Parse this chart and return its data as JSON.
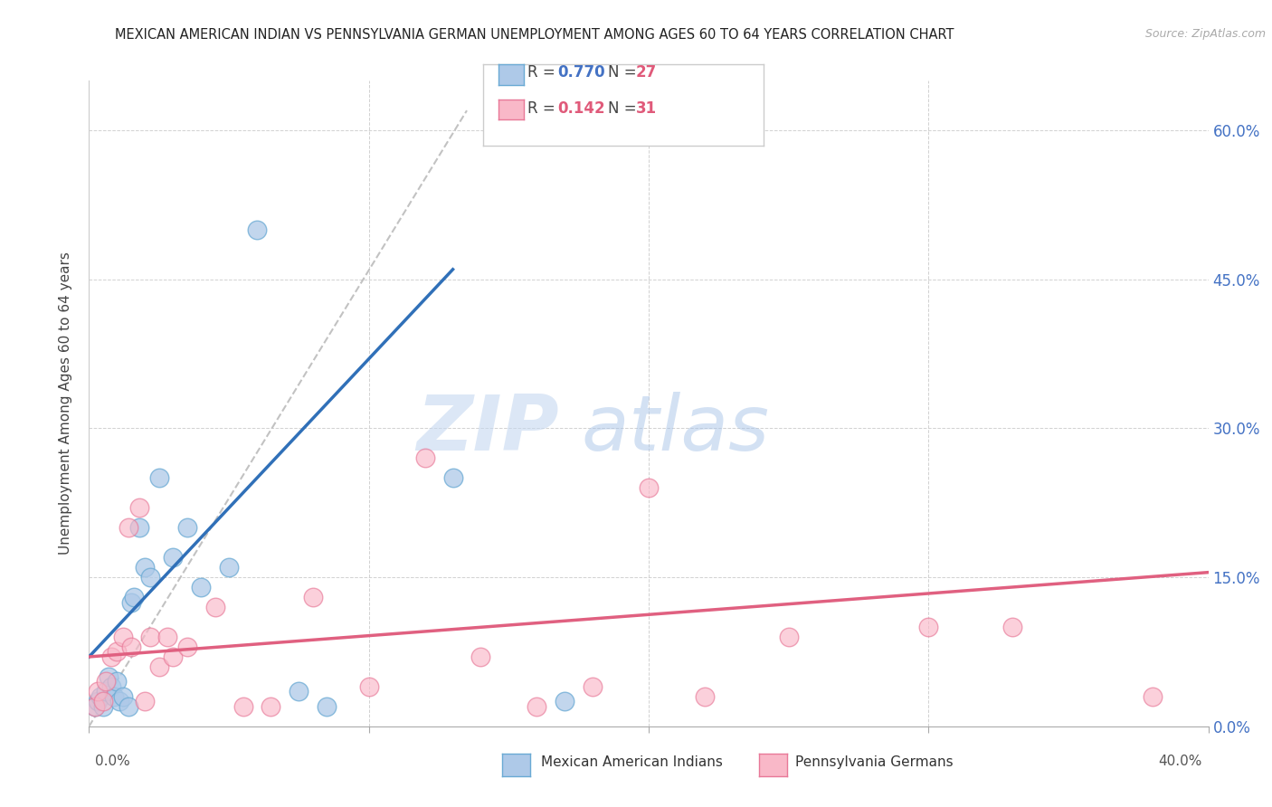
{
  "title": "MEXICAN AMERICAN INDIAN VS PENNSYLVANIA GERMAN UNEMPLOYMENT AMONG AGES 60 TO 64 YEARS CORRELATION CHART",
  "source": "Source: ZipAtlas.com",
  "ylabel": "Unemployment Among Ages 60 to 64 years",
  "ytick_labels": [
    "0.0%",
    "15.0%",
    "30.0%",
    "45.0%",
    "60.0%"
  ],
  "ytick_values": [
    0,
    15,
    30,
    45,
    60
  ],
  "xlim": [
    0,
    40
  ],
  "ylim": [
    0,
    65
  ],
  "blue_color": "#aec9e8",
  "blue_edge_color": "#6aaad4",
  "pink_color": "#f9b8c8",
  "pink_edge_color": "#e87898",
  "blue_line_color": "#3070b8",
  "pink_line_color": "#e06080",
  "diag_line_color": "#b8b8b8",
  "watermark_zip": "ZIP",
  "watermark_atlas": "atlas",
  "blue_scatter_x": [
    0.2,
    0.3,
    0.4,
    0.5,
    0.6,
    0.7,
    0.8,
    0.9,
    1.0,
    1.1,
    1.2,
    1.4,
    1.5,
    1.6,
    1.8,
    2.0,
    2.2,
    2.5,
    3.0,
    3.5,
    4.0,
    5.0,
    6.0,
    7.5,
    8.5,
    13.0,
    17.0
  ],
  "blue_scatter_y": [
    2.0,
    2.5,
    3.0,
    2.0,
    3.5,
    5.0,
    4.0,
    3.0,
    4.5,
    2.5,
    3.0,
    2.0,
    12.5,
    13.0,
    20.0,
    16.0,
    15.0,
    25.0,
    17.0,
    20.0,
    14.0,
    16.0,
    50.0,
    3.5,
    2.0,
    25.0,
    2.5
  ],
  "pink_scatter_x": [
    0.2,
    0.3,
    0.5,
    0.6,
    0.8,
    1.0,
    1.2,
    1.4,
    1.5,
    1.8,
    2.0,
    2.2,
    2.5,
    2.8,
    3.0,
    3.5,
    4.5,
    5.5,
    6.5,
    8.0,
    10.0,
    12.0,
    14.0,
    16.0,
    18.0,
    20.0,
    22.0,
    25.0,
    30.0,
    33.0,
    38.0
  ],
  "pink_scatter_y": [
    2.0,
    3.5,
    2.5,
    4.5,
    7.0,
    7.5,
    9.0,
    20.0,
    8.0,
    22.0,
    2.5,
    9.0,
    6.0,
    9.0,
    7.0,
    8.0,
    12.0,
    2.0,
    2.0,
    13.0,
    4.0,
    27.0,
    7.0,
    2.0,
    4.0,
    24.0,
    3.0,
    9.0,
    10.0,
    10.0,
    3.0
  ],
  "blue_line_x0": 0.0,
  "blue_line_y0": 7.0,
  "blue_line_x1": 13.0,
  "blue_line_y1": 46.0,
  "pink_line_x0": 0.0,
  "pink_line_y0": 7.0,
  "pink_line_x1": 40.0,
  "pink_line_y1": 15.5,
  "diag_x0": 0.0,
  "diag_y0": 0.0,
  "diag_x1": 13.5,
  "diag_y1": 62.0
}
